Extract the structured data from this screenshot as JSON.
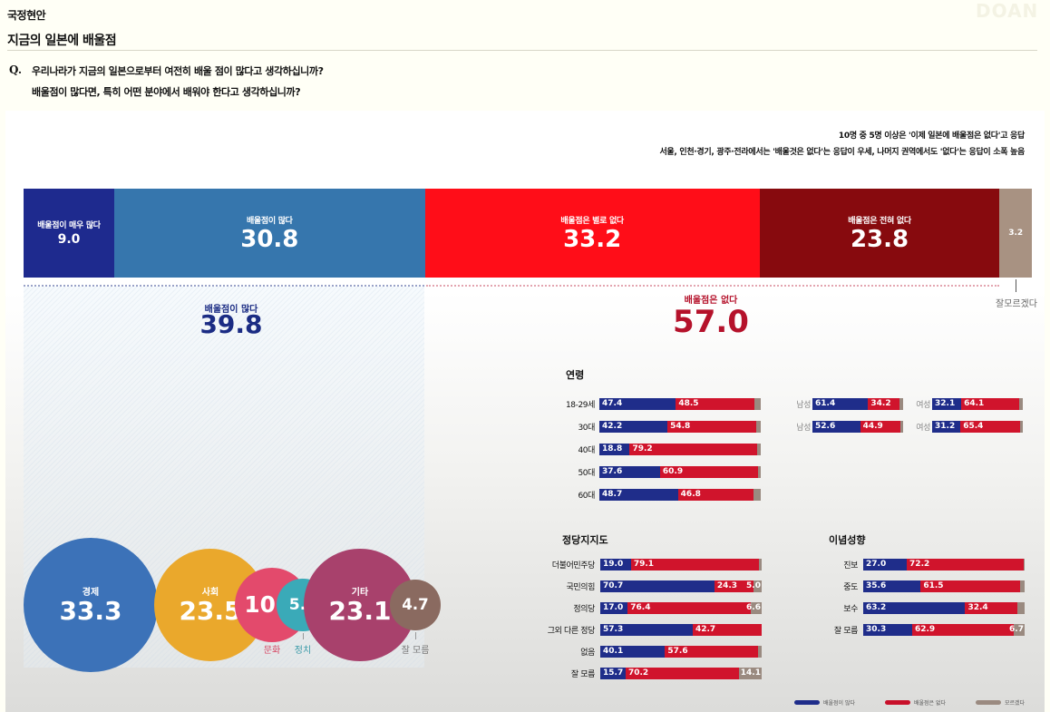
{
  "header": {
    "section_tag": "국정현안",
    "title": "지금의 일본에 배울점",
    "watermark": "DOAN",
    "question_mark": "Q.",
    "question_lines": [
      "우리나라가 지금의 일본으로부터 여전히 배울 점이 많다고 생각하십니까?",
      "배울점이 많다면, 특히 어떤 분야에서 배워야 한다고 생각하십니까?"
    ]
  },
  "notes": [
    "10명 중 5명 이상은 '이제 일본에 배울점은 없다'고 응답",
    "서울, 인천·경기, 광주·전라에서는 '배울것은 없다'는 응답이 우세, 나머지 권역에서도 '없다'는 응답이 소폭 높음"
  ],
  "colors": {
    "very_many": "#1e2a8e",
    "many": "#3676ad",
    "not_much": "#ff0d18",
    "none": "#870a0e",
    "dont_know": "#a89282",
    "small_blue": "#1f2d8a",
    "small_red": "#d0142c",
    "small_gray": "#9a8a80",
    "sum_blue": "#1b2c84",
    "sum_red": "#b5122b"
  },
  "chart_data": [
    {
      "type": "bar",
      "orientation": "horizontal-stacked",
      "title": "우리나라가 지금의 일본으로부터 여전히 배울 점이 많다고 생각하십니까?",
      "unit": "%",
      "categories": [
        "배울점이 매우 많다",
        "배울점이 많다",
        "배울점은 별로 없다",
        "배울점은 전혀 없다",
        "잘모르겠다"
      ],
      "values": [
        9.0,
        30.8,
        33.2,
        23.8,
        3.2
      ],
      "summaries": [
        {
          "label": "배울점이 많다",
          "value": 39.8
        },
        {
          "label": "배울점은 없다",
          "value": 57.0
        }
      ]
    },
    {
      "type": "bar",
      "orientation": "horizontal-stacked",
      "title": "연령",
      "series_names": [
        "배울점이 많다",
        "배울점은 없다",
        "모르겠다"
      ],
      "rows": [
        {
          "label": "18-29세",
          "values": [
            47.4,
            48.5,
            4.1
          ],
          "show_gray_label": false
        },
        {
          "label": "30대",
          "values": [
            42.2,
            54.8,
            3.0
          ],
          "show_gray_label": false
        },
        {
          "label": "40대",
          "values": [
            18.8,
            79.2,
            2.0
          ],
          "show_gray_label": false
        },
        {
          "label": "50대",
          "values": [
            37.6,
            60.9,
            1.5
          ],
          "show_gray_label": false
        },
        {
          "label": "60대",
          "values": [
            48.7,
            46.8,
            4.5
          ],
          "show_gray_label": false
        }
      ],
      "gender_rows": [
        {
          "age": "18-29세",
          "male": {
            "label": "남성",
            "values": [
              61.4,
              34.2,
              4.4
            ]
          },
          "female": {
            "label": "여성",
            "values": [
              32.1,
              64.1,
              3.8
            ]
          }
        },
        {
          "age": "30대",
          "male": {
            "label": "남성",
            "values": [
              52.6,
              44.9,
              2.5
            ]
          },
          "female": {
            "label": "여성",
            "values": [
              31.2,
              65.4,
              3.4
            ]
          }
        }
      ]
    },
    {
      "type": "bar",
      "orientation": "horizontal-stacked",
      "title": "정당지지도",
      "series_names": [
        "배울점이 많다",
        "배울점은 없다",
        "모르겠다"
      ],
      "rows": [
        {
          "label": "더불어민주당",
          "values": [
            19.0,
            79.1,
            1.9
          ],
          "show_gray_label": false
        },
        {
          "label": "국민의힘",
          "values": [
            70.7,
            24.3,
            5.0
          ],
          "show_gray_label": true
        },
        {
          "label": "정의당",
          "values": [
            17.0,
            76.4,
            6.6
          ],
          "show_gray_label": true
        },
        {
          "label": "그외 다른 정당",
          "values": [
            57.3,
            42.7,
            0.0
          ],
          "show_gray_label": false
        },
        {
          "label": "없음",
          "values": [
            40.1,
            57.6,
            2.3
          ],
          "show_gray_label": false
        },
        {
          "label": "잘 모름",
          "values": [
            15.7,
            70.2,
            14.1
          ],
          "show_gray_label": true
        }
      ]
    },
    {
      "type": "bar",
      "orientation": "horizontal-stacked",
      "title": "이념성향",
      "series_names": [
        "배울점이 많다",
        "배울점은 없다",
        "모르겠다"
      ],
      "rows": [
        {
          "label": "진보",
          "values": [
            27.0,
            72.2,
            0.8
          ],
          "show_gray_label": false
        },
        {
          "label": "중도",
          "values": [
            35.6,
            61.5,
            2.9
          ],
          "show_gray_label": false
        },
        {
          "label": "보수",
          "values": [
            63.2,
            32.4,
            4.4
          ],
          "show_gray_label": false
        },
        {
          "label": "잘 모름",
          "values": [
            30.3,
            62.9,
            6.7
          ],
          "show_gray_label": true
        }
      ]
    },
    {
      "type": "bubble",
      "title": "배울점이 많다면, 특히 어떤 분야에서 배워야 한다고 생각하십니까?",
      "unit": "%",
      "items": [
        {
          "label": "경제",
          "value": 33.3,
          "color": "#3c72b8",
          "label_inside": true
        },
        {
          "label": "사회",
          "value": 23.5,
          "color": "#eaa82c",
          "label_inside": true
        },
        {
          "label": "문화",
          "value": 10.4,
          "color": "#e34a6c",
          "label_inside": false,
          "label_color": "#d6425f"
        },
        {
          "label": "정치",
          "value": 5.0,
          "color": "#3aaab8",
          "label_inside": false,
          "label_color": "#3a9aa8"
        },
        {
          "label": "기타",
          "value": 23.1,
          "color": "#a8416c",
          "label_inside": true
        },
        {
          "label": "잘 모름",
          "value": 4.7,
          "color": "#8a6a60",
          "label_inside": false,
          "label_color": "#777"
        }
      ]
    }
  ],
  "legend": [
    {
      "label": "배울점이 많다",
      "color": "#1f2d8a"
    },
    {
      "label": "배울점은 없다",
      "color": "#c8102a"
    },
    {
      "label": "모르겠다",
      "color": "#9a8a80"
    }
  ],
  "dont_know_label": "잘모르겠다"
}
